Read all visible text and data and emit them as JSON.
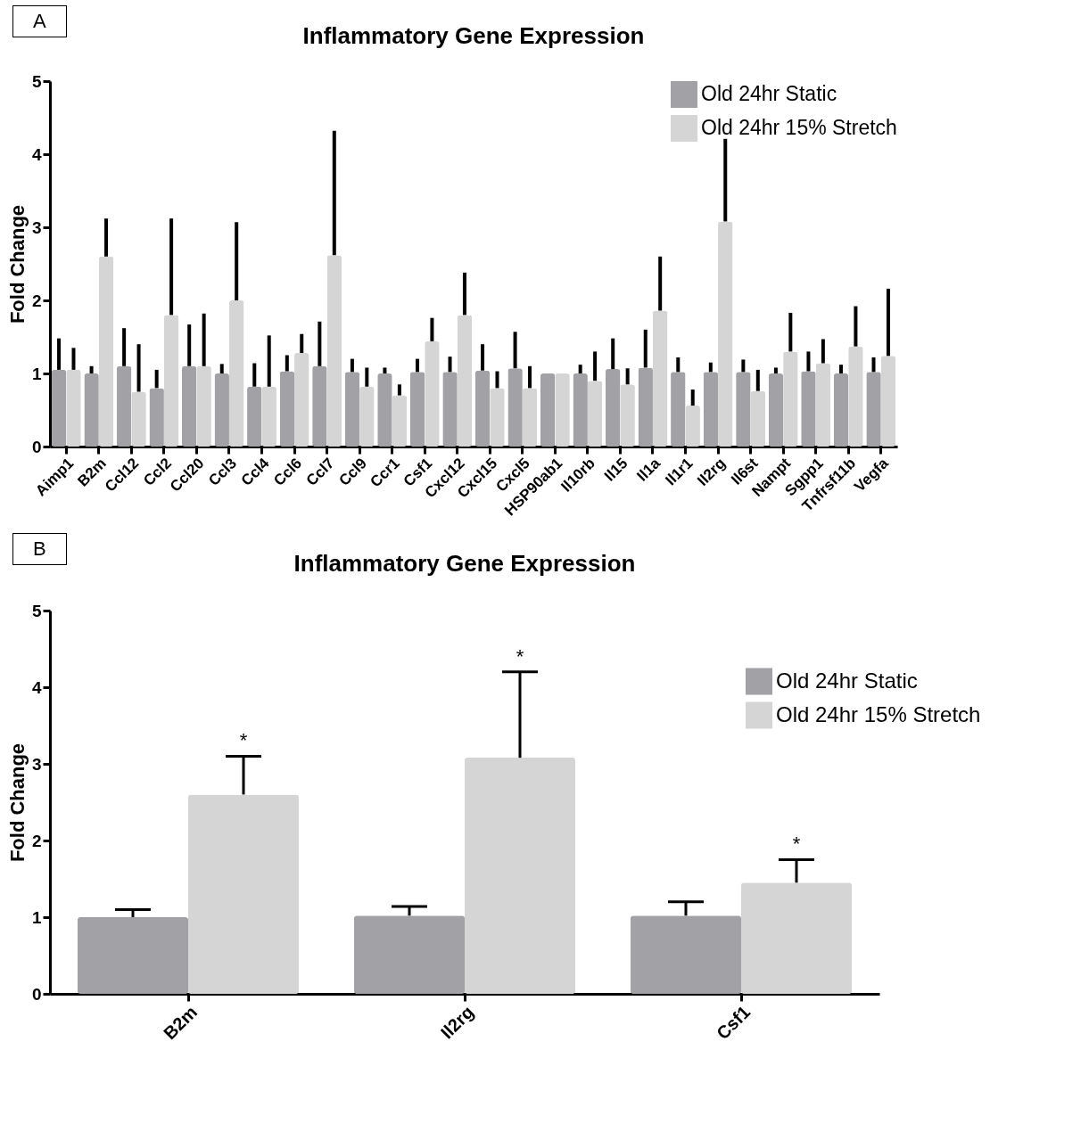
{
  "chart_data": [
    {
      "type": "bar",
      "title": "Inflammatory Gene Expression",
      "ylabel": "Fold Change",
      "annotations": [
        "A"
      ],
      "categories": [
        "Aimp1",
        "B2m",
        "Ccl12",
        "Ccl2",
        "Ccl20",
        "Ccl3",
        "Ccl4",
        "Ccl6",
        "Ccl7",
        "Ccl9",
        "Ccr1",
        "Csf1",
        "Cxcl12",
        "Cxcl15",
        "Cxcl5",
        "HSP90ab1",
        "Il10rb",
        "Il15",
        "Il1a",
        "Il1r1",
        "Il2rg",
        "Il6st",
        "Nampt",
        "Sgpp1",
        "Tnfrsf11b",
        "Vegfa"
      ],
      "series": [
        {
          "name": "Old 24hr Static",
          "color": "#a1a1a6",
          "values": [
            1.05,
            1.0,
            1.1,
            0.8,
            1.1,
            1.0,
            0.82,
            1.03,
            1.1,
            1.02,
            1.0,
            1.02,
            1.02,
            1.04,
            1.07,
            1.0,
            1.0,
            1.06,
            1.08,
            1.02,
            1.02,
            1.02,
            1.0,
            1.03,
            1.0,
            1.02
          ],
          "errors": [
            [
              1.05,
              1.48
            ],
            [
              1.0,
              1.1
            ],
            [
              1.1,
              1.62
            ],
            [
              0.8,
              1.05
            ],
            [
              1.1,
              1.67
            ],
            [
              1.0,
              1.13
            ],
            [
              0.82,
              1.14
            ],
            [
              1.03,
              1.25
            ],
            [
              1.1,
              1.71
            ],
            [
              1.02,
              1.2
            ],
            [
              1.0,
              1.08
            ],
            [
              1.02,
              1.2
            ],
            [
              1.02,
              1.23
            ],
            [
              1.04,
              1.4
            ],
            [
              1.07,
              1.57
            ],
            null,
            [
              1.0,
              1.12
            ],
            [
              1.06,
              1.48
            ],
            [
              1.08,
              1.6
            ],
            [
              1.02,
              1.22
            ],
            [
              1.02,
              1.15
            ],
            [
              1.02,
              1.19
            ],
            [
              1.0,
              1.08
            ],
            [
              1.03,
              1.3
            ],
            [
              1.0,
              1.12
            ],
            [
              1.02,
              1.22
            ]
          ]
        },
        {
          "name": "Old 24hr 15% Stretch",
          "color": "#d5d5d5",
          "values": [
            1.05,
            2.6,
            0.75,
            1.8,
            1.1,
            2.0,
            0.82,
            1.28,
            2.62,
            0.82,
            0.7,
            1.44,
            1.8,
            0.8,
            0.8,
            1.0,
            0.9,
            0.85,
            1.86,
            0.56,
            3.08,
            0.76,
            1.3,
            1.14,
            1.37,
            1.24
          ],
          "errors": [
            [
              1.05,
              1.35
            ],
            [
              2.6,
              3.12
            ],
            [
              0.75,
              1.4
            ],
            [
              1.8,
              3.12
            ],
            [
              1.1,
              1.82
            ],
            [
              2.0,
              3.07
            ],
            [
              0.82,
              1.52
            ],
            [
              1.28,
              1.54
            ],
            [
              2.62,
              4.32
            ],
            [
              0.82,
              1.08
            ],
            [
              0.7,
              0.85
            ],
            [
              1.44,
              1.76
            ],
            [
              1.8,
              2.38
            ],
            [
              0.8,
              1.03
            ],
            [
              0.8,
              1.1
            ],
            null,
            [
              0.9,
              1.3
            ],
            [
              0.85,
              1.07
            ],
            [
              1.86,
              2.6
            ],
            [
              0.56,
              0.78
            ],
            [
              3.08,
              4.21
            ],
            [
              0.76,
              1.05
            ],
            [
              1.3,
              1.83
            ],
            [
              1.14,
              1.47
            ],
            [
              1.37,
              1.92
            ],
            [
              1.24,
              2.16
            ]
          ]
        }
      ],
      "ylim": [
        0,
        5
      ],
      "yticks": [
        0,
        1,
        2,
        3,
        4,
        5
      ],
      "legend": "top right"
    },
    {
      "type": "bar",
      "title": "Inflammatory Gene Expression",
      "ylabel": "Fold Change",
      "annotations": [
        "B",
        "*",
        "*",
        "*"
      ],
      "categories": [
        "B2m",
        "Il2rg",
        "Csf1"
      ],
      "series": [
        {
          "name": "Old 24hr Static",
          "color": "#a1a1a6",
          "values": [
            1.0,
            1.02,
            1.02
          ],
          "errors": [
            [
              1.0,
              1.1
            ],
            [
              1.02,
              1.14
            ],
            [
              1.02,
              1.2
            ]
          ]
        },
        {
          "name": "Old 24hr 15% Stretch",
          "color": "#d5d5d5",
          "values": [
            2.6,
            3.08,
            1.45
          ],
          "errors": [
            [
              2.6,
              3.1
            ],
            [
              3.08,
              4.2
            ],
            [
              1.45,
              1.75
            ]
          ]
        }
      ],
      "ylim": [
        0,
        5
      ],
      "yticks": [
        0,
        1,
        2,
        3,
        4,
        5
      ],
      "legend": "right"
    }
  ]
}
